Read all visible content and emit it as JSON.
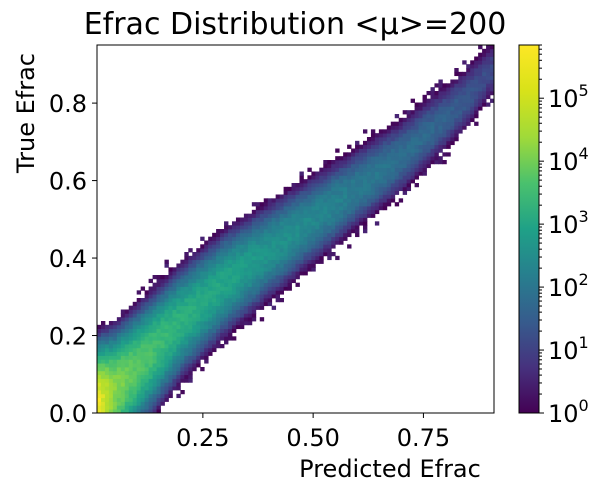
{
  "chart_data": {
    "type": "heatmap",
    "title": "Efrac Distribution <μ>=200",
    "xlabel": "Predicted Efrac",
    "ylabel": "True Efrac",
    "xlim": [
      0.01,
      0.91
    ],
    "ylim": [
      0.0,
      0.95
    ],
    "xticks": [
      {
        "value": 0.25,
        "label": "0.25"
      },
      {
        "value": 0.5,
        "label": "0.50"
      },
      {
        "value": 0.75,
        "label": "0.75"
      }
    ],
    "yticks": [
      {
        "value": 0.0,
        "label": "0.0"
      },
      {
        "value": 0.2,
        "label": "0.2"
      },
      {
        "value": 0.4,
        "label": "0.4"
      },
      {
        "value": 0.6,
        "label": "0.6"
      },
      {
        "value": 0.8,
        "label": "0.8"
      }
    ],
    "colorbar": {
      "scale": "log",
      "colormap": "viridis",
      "range": [
        1,
        700000
      ],
      "ticks": [
        {
          "exp": 0,
          "base": "10",
          "sup": "0"
        },
        {
          "exp": 1,
          "base": "10",
          "sup": "1"
        },
        {
          "exp": 2,
          "base": "10",
          "sup": "2"
        },
        {
          "exp": 3,
          "base": "10",
          "sup": "3"
        },
        {
          "exp": 4,
          "base": "10",
          "sup": "4"
        },
        {
          "exp": 5,
          "base": "10",
          "sup": "5"
        }
      ]
    },
    "density_profile": {
      "x": [
        0.01,
        0.05,
        0.1,
        0.15,
        0.2,
        0.25,
        0.3,
        0.35,
        0.4,
        0.45,
        0.5,
        0.55,
        0.6,
        0.65,
        0.7,
        0.75,
        0.8,
        0.85,
        0.9
      ],
      "ridge_y": [
        0.02,
        0.06,
        0.12,
        0.18,
        0.24,
        0.29,
        0.34,
        0.38,
        0.42,
        0.46,
        0.5,
        0.54,
        0.58,
        0.62,
        0.66,
        0.71,
        0.76,
        0.81,
        0.88
      ],
      "peak_log10_count": [
        5.8,
        4.8,
        4.3,
        4.0,
        3.7,
        3.5,
        3.4,
        3.2,
        3.0,
        2.9,
        2.7,
        2.6,
        2.4,
        2.3,
        2.1,
        2.0,
        1.8,
        1.6,
        1.3
      ]
    },
    "grid": false
  }
}
